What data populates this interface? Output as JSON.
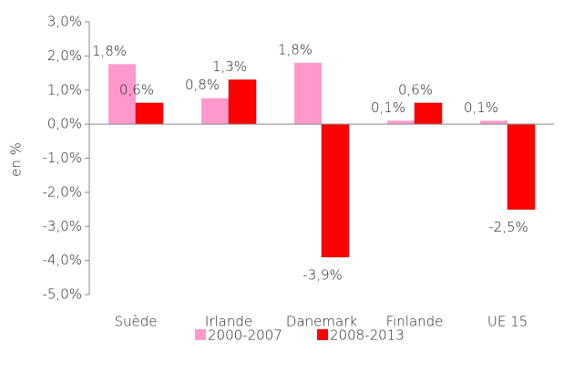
{
  "chart_data": {
    "type": "bar",
    "y_label": "en %",
    "categories": [
      "Suède",
      "Irlande",
      "Danemark",
      "Finlande",
      "UE 15"
    ],
    "series": [
      {
        "name": "2000-2007",
        "color": "#ff99cc",
        "values": [
          1.76,
          0.76,
          1.8,
          0.1,
          0.1
        ],
        "value_labels": [
          "1,8%",
          "0,8%",
          "1,8%",
          "0,1%",
          "0,1%"
        ]
      },
      {
        "name": "2008-2013",
        "color": "#ff0000",
        "values": [
          0.62,
          1.3,
          -3.9,
          0.62,
          -2.5
        ],
        "value_labels": [
          "0,6%",
          "1,3%",
          "-3,9%",
          "0,6%",
          "-2,5%"
        ]
      }
    ],
    "ylim": [
      -5,
      3
    ],
    "yticks": [
      {
        "value": 3,
        "label": "3,0%"
      },
      {
        "value": 2,
        "label": "2,0%"
      },
      {
        "value": 1,
        "label": "1,0%"
      },
      {
        "value": 0,
        "label": "0,0%"
      },
      {
        "value": -1,
        "label": "-1,0%"
      },
      {
        "value": -2,
        "label": "-2,0%"
      },
      {
        "value": -3,
        "label": "-3,0%"
      },
      {
        "value": -4,
        "label": "-4,0%"
      },
      {
        "value": -5,
        "label": "-5,0%"
      }
    ],
    "legend": "bottom"
  }
}
